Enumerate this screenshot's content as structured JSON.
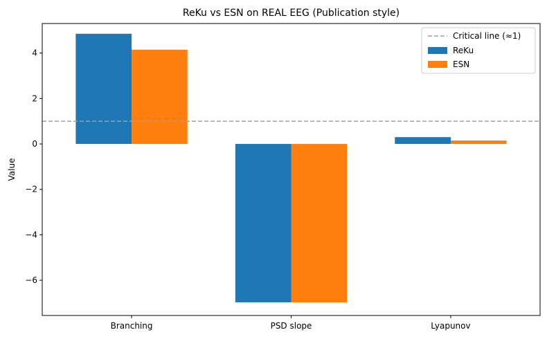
{
  "chart_data": {
    "type": "bar",
    "title": "ReKu vs ESN on REAL EEG (Publication style)",
    "xlabel": "",
    "ylabel": "Value",
    "categories": [
      "Branching",
      "PSD slope",
      "Lyapunov"
    ],
    "series": [
      {
        "name": "ReKu",
        "color": "#1f77b4",
        "values": [
          4.85,
          -6.97,
          0.3
        ]
      },
      {
        "name": "ESN",
        "color": "#ff7f0e",
        "values": [
          4.15,
          -6.97,
          0.15
        ]
      }
    ],
    "reference_line": {
      "label": "Critical line (≈1)",
      "value": 1.0,
      "color": "#a0a0a0",
      "style": "dashed"
    },
    "ylim": [
      -7.55,
      5.3
    ],
    "yticks": [
      -6,
      -4,
      -2,
      0,
      2,
      4
    ],
    "ytick_labels": [
      "−6",
      "−4",
      "−2",
      "0",
      "2",
      "4"
    ],
    "grid": false,
    "legend_position": "top-right"
  }
}
